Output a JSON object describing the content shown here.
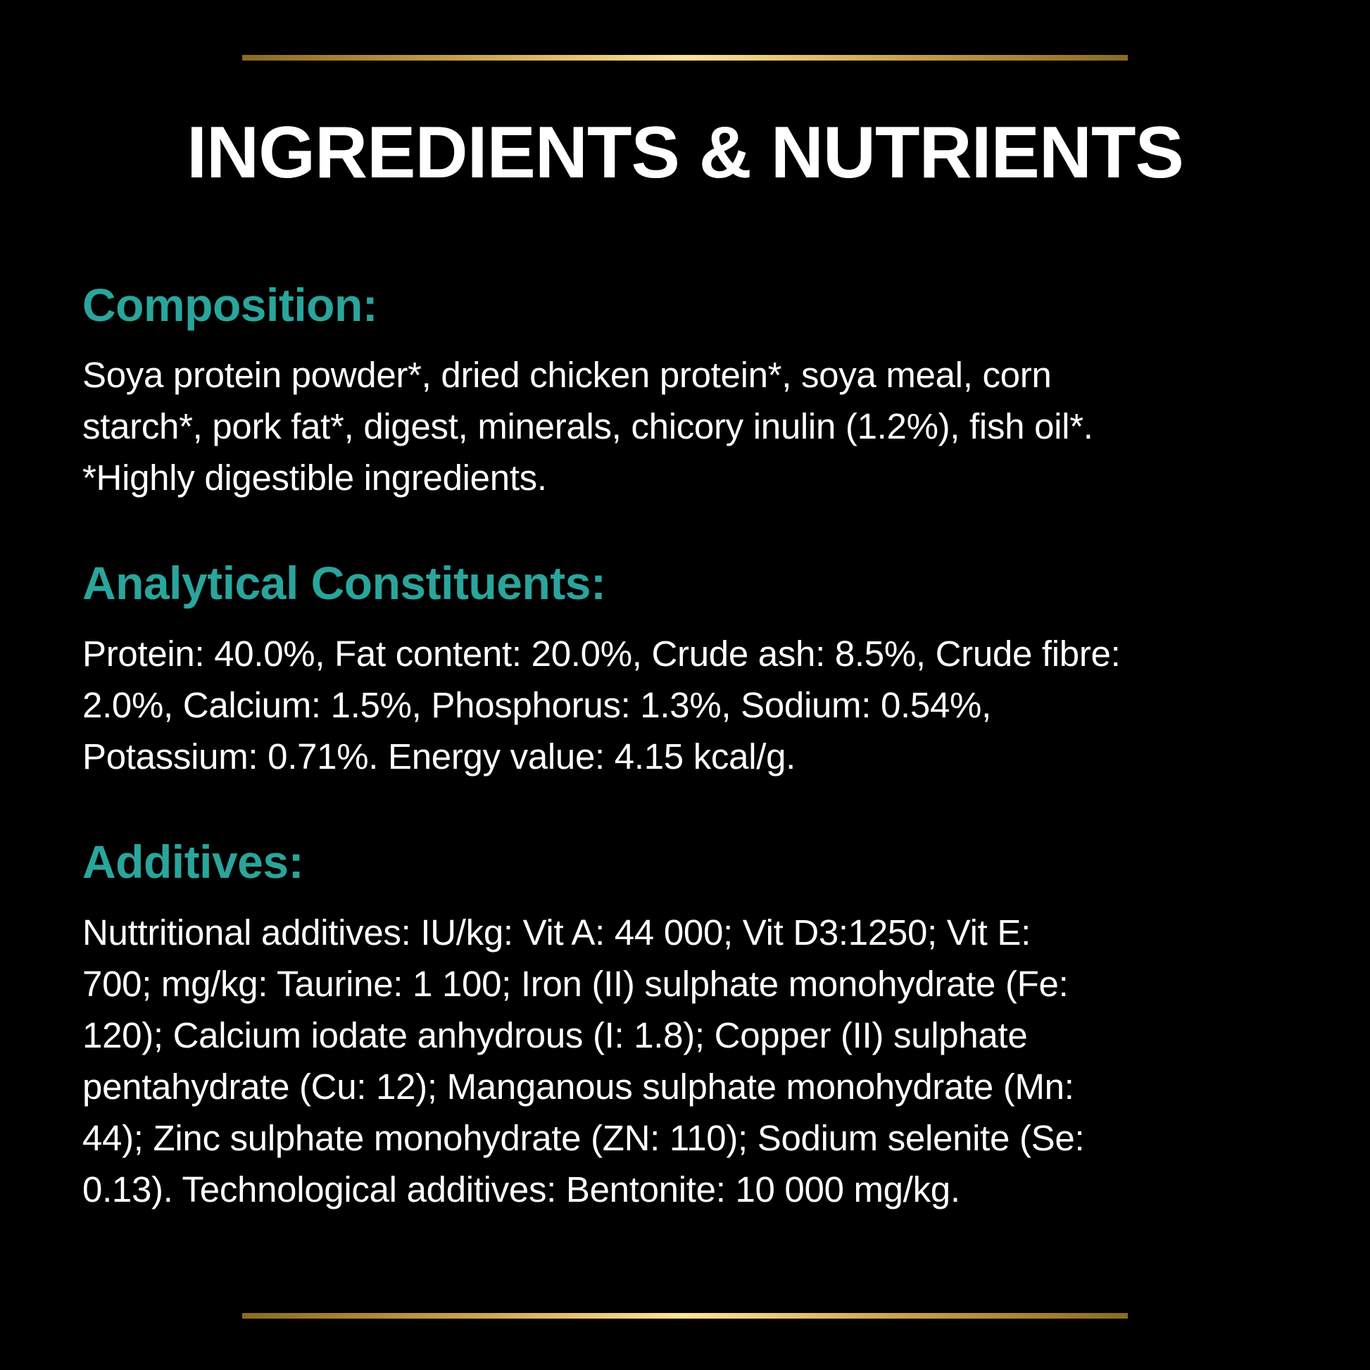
{
  "title": "INGREDIENTS & NUTRIENTS",
  "accent_color": "#2aa59c",
  "divider_color": "#c9a04a",
  "sections": [
    {
      "heading": "Composition:",
      "lines": [
        "Soya protein powder*, dried chicken protein*, soya meal, corn",
        "starch*, pork fat*, digest, minerals, chicory inulin (1.2%), fish oil*.",
        "*Highly digestible ingredients."
      ]
    },
    {
      "heading": "Analytical Constituents:",
      "lines": [
        "Protein: 40.0%, Fat content: 20.0%, Crude ash: 8.5%, Crude fibre:",
        "2.0%, Calcium: 1.5%, Phosphorus: 1.3%, Sodium: 0.54%,",
        "Potassium: 0.71%. Energy value: 4.15 kcal/g."
      ]
    },
    {
      "heading": "Additives:",
      "lines": [
        "Nuttritional additives: IU/kg: Vit A: 44 000; Vit D3:1250; Vit E:",
        "700; mg/kg: Taurine: 1 100; Iron (II) sulphate monohydrate (Fe:",
        "120); Calcium iodate anhydrous (I: 1.8); Copper (II) sulphate",
        "pentahydrate (Cu: 12); Manganous sulphate monohydrate (Mn:",
        "44); Zinc sulphate monohydrate (ZN: 110); Sodium selenite (Se:",
        "0.13). Technological additives: Bentonite: 10 000 mg/kg."
      ]
    }
  ]
}
